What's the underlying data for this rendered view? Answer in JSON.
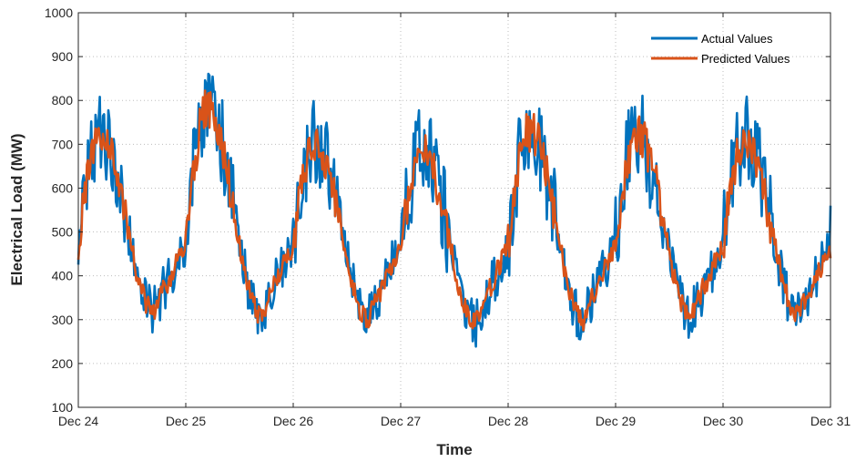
{
  "chart_data": {
    "type": "line",
    "xlabel": "Time",
    "ylabel": "Electrical Load (MW)",
    "ylim": [
      100,
      1000
    ],
    "xlim": [
      "Dec 24",
      "Dec 31"
    ],
    "y_ticks": [
      100,
      200,
      300,
      400,
      500,
      600,
      700,
      800,
      900,
      1000
    ],
    "x_tick_labels": [
      "Dec 24",
      "Dec 25",
      "Dec 26",
      "Dec 27",
      "Dec 28",
      "Dec 29",
      "Dec 30",
      "Dec 31"
    ],
    "grid": true,
    "legend_position": "top-right",
    "series": [
      {
        "name": "Actual Values",
        "color": "#0072BD"
      },
      {
        "name": "Predicted Values",
        "color": "#D95319"
      }
    ],
    "daily_profile": [
      {
        "day": "Dec 24",
        "peak": 720,
        "peak_noise": 90,
        "trough": 320
      },
      {
        "day": "Dec 25",
        "peak": 780,
        "peak_noise": 110,
        "trough": 310
      },
      {
        "day": "Dec 26",
        "peak": 700,
        "peak_noise": 100,
        "trough": 300
      },
      {
        "day": "Dec 27",
        "peak": 680,
        "peak_noise": 110,
        "trough": 290
      },
      {
        "day": "Dec 28",
        "peak": 730,
        "peak_noise": 110,
        "trough": 300
      },
      {
        "day": "Dec 29",
        "peak": 720,
        "peak_noise": 110,
        "trough": 310
      },
      {
        "day": "Dec 30",
        "peak": 710,
        "peak_noise": 110,
        "trough": 310
      }
    ]
  }
}
